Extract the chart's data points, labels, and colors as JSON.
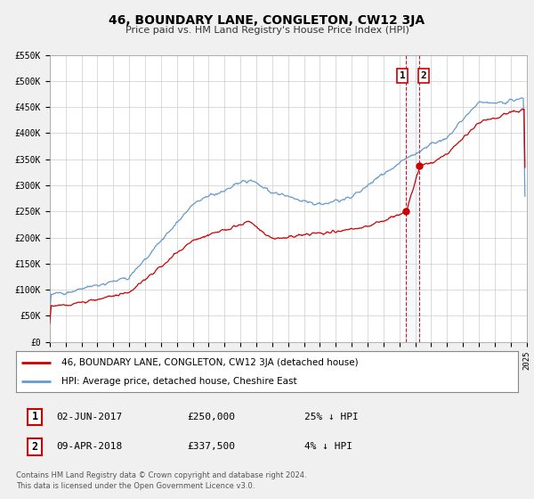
{
  "title": "46, BOUNDARY LANE, CONGLETON, CW12 3JA",
  "subtitle": "Price paid vs. HM Land Registry's House Price Index (HPI)",
  "legend_label_red": "46, BOUNDARY LANE, CONGLETON, CW12 3JA (detached house)",
  "legend_label_blue": "HPI: Average price, detached house, Cheshire East",
  "annotation1_date": "02-JUN-2017",
  "annotation1_price": "£250,000",
  "annotation1_hpi": "25% ↓ HPI",
  "annotation2_date": "09-APR-2018",
  "annotation2_price": "£337,500",
  "annotation2_hpi": "4% ↓ HPI",
  "footer1": "Contains HM Land Registry data © Crown copyright and database right 2024.",
  "footer2": "This data is licensed under the Open Government Licence v3.0.",
  "red_color": "#cc0000",
  "blue_color": "#6699cc",
  "shade_color": "#ddeeff",
  "dashed_line_color": "#cc0000",
  "point1_x_year": 2017.42,
  "point1_y": 250000,
  "point2_x_year": 2018.27,
  "point2_y": 337500,
  "vline1_x": 2017.42,
  "vline2_x": 2018.27,
  "ylim": [
    0,
    550000
  ],
  "yticks": [
    0,
    50000,
    100000,
    150000,
    200000,
    250000,
    300000,
    350000,
    400000,
    450000,
    500000,
    550000
  ],
  "ytick_labels": [
    "£0",
    "£50K",
    "£100K",
    "£150K",
    "£200K",
    "£250K",
    "£300K",
    "£350K",
    "£400K",
    "£450K",
    "£500K",
    "£550K"
  ],
  "xlim_start": 1995,
  "xlim_end": 2025,
  "background_color": "#f0f0f0",
  "plot_bg_color": "#ffffff",
  "grid_color": "#cccccc"
}
